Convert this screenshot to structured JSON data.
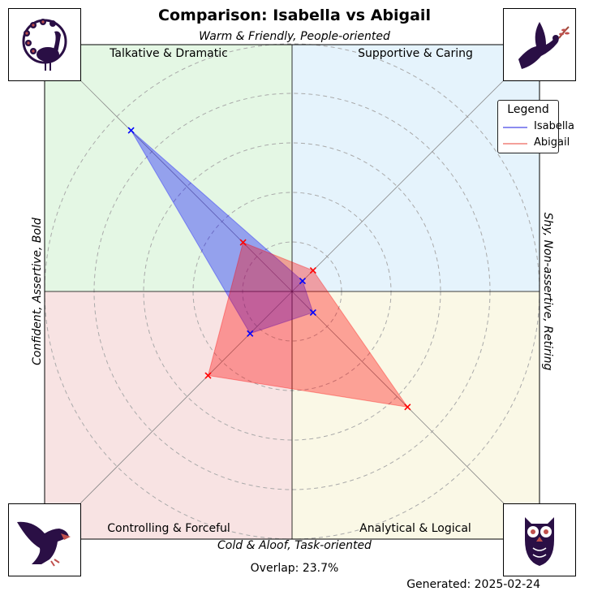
{
  "title": "Comparison: Isabella vs Abigail",
  "axes": {
    "top": "Warm & Friendly, People-oriented",
    "bottom": "Cold & Aloof, Task-oriented",
    "left": "Confident, Assertive, Bold",
    "right": "Shy, Non-assertive, Retiring"
  },
  "quadrants": {
    "top_left": "Talkative & Dramatic",
    "top_right": "Supportive & Caring",
    "bottom_left": "Controlling & Forceful",
    "bottom_right": "Analytical & Logical"
  },
  "icons": {
    "top_left": "peacock-icon",
    "top_right": "dove-icon",
    "bottom_left": "eagle-icon",
    "bottom_right": "owl-icon"
  },
  "legend": {
    "title": "Legend",
    "items": [
      "Isabella",
      "Abigail"
    ]
  },
  "overlap_text": "Overlap: 23.7%",
  "generated_text": "Generated: 2025-02-24",
  "colors": {
    "isabella": "#0000ff",
    "abigail": "#ff0000",
    "quad_top_left": "#e4f7e4",
    "quad_top_right": "#e5f3fc",
    "quad_bottom_left": "#f8e3e3",
    "quad_bottom_right": "#faf8e6",
    "icon_fill": "#2a0f45"
  },
  "chart_data": {
    "type": "radar",
    "axes_directions": [
      "top-right",
      "bottom-right",
      "bottom-left",
      "top-left"
    ],
    "rings": 5,
    "range": [
      0,
      5
    ],
    "series": [
      {
        "name": "Isabella",
        "values": [
          0.3,
          0.6,
          1.2,
          4.6
        ]
      },
      {
        "name": "Abigail",
        "values": [
          0.6,
          3.3,
          2.4,
          1.4
        ]
      }
    ],
    "grid": true,
    "legend_position": "top-right"
  }
}
